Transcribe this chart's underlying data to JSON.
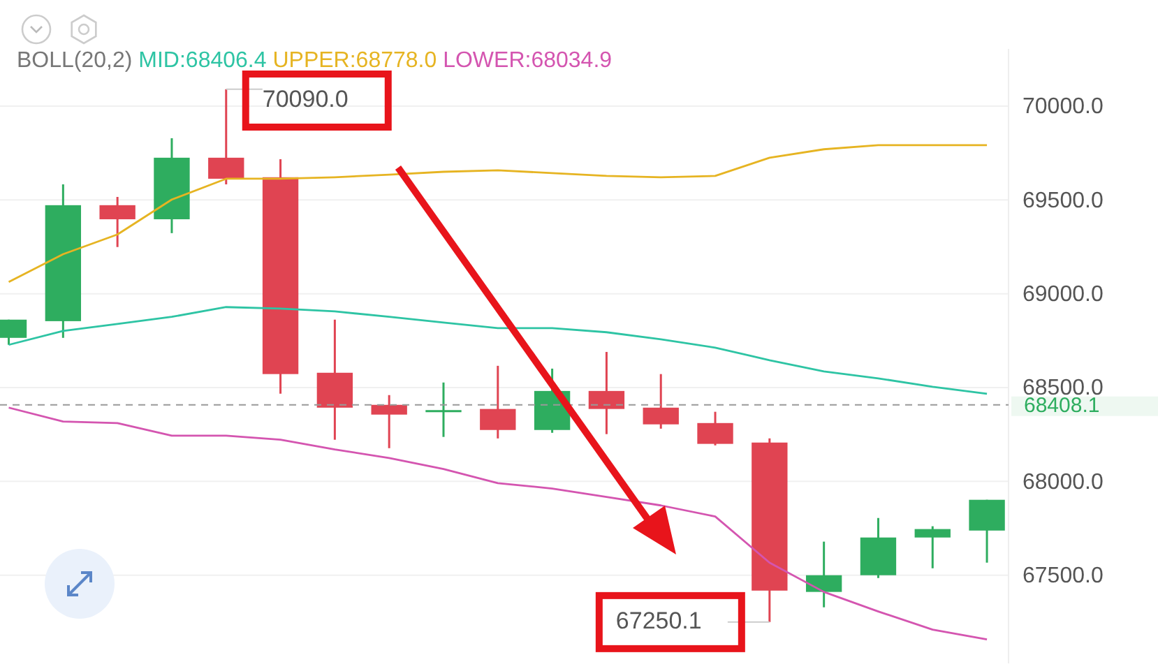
{
  "chart_data": {
    "type": "candlestick",
    "categories": [
      null,
      null,
      null,
      null,
      null,
      null,
      null,
      null,
      null,
      null,
      null,
      null,
      null,
      null,
      null,
      null,
      null,
      null,
      null
    ],
    "ohlc": [
      [
        68765,
        68862,
        68728,
        68862
      ],
      [
        68854,
        69583,
        68765,
        69472
      ],
      [
        69472,
        69516,
        69249,
        69397
      ],
      [
        69397,
        69829,
        69323,
        69725
      ],
      [
        69725,
        70090.0,
        69583,
        69613
      ],
      [
        69621,
        69717,
        68467,
        68572
      ],
      [
        68579,
        68862,
        68222,
        68393
      ],
      [
        68408,
        68460,
        68177,
        68356
      ],
      [
        68370,
        68527,
        68237,
        68380
      ],
      [
        68386,
        68616,
        68229,
        68274
      ],
      [
        68274,
        68601,
        68259,
        68482
      ],
      [
        68482,
        68690,
        68252,
        68386
      ],
      [
        68393,
        68572,
        68281,
        68304
      ],
      [
        68311,
        68371,
        68192,
        68200
      ],
      [
        68207,
        68229,
        67250.1,
        67418
      ],
      [
        67411,
        67679,
        67329,
        67500
      ],
      [
        67500,
        67805,
        67485,
        67701
      ],
      [
        67701,
        67761,
        67537,
        67746
      ],
      [
        67738,
        67902,
        67567,
        67902
      ]
    ],
    "colors": [
      "#2ead5f",
      "#2ead5f",
      "#e04452",
      "#2ead5f",
      "#e04452",
      "#e04452",
      "#e04452",
      "#e04452",
      "#2ead5f",
      "#e04452",
      "#2ead5f",
      "#e04452",
      "#e04452",
      "#e04452",
      "#e04452",
      "#2ead5f",
      "#2ead5f",
      "#2ead5f",
      "#2ead5f"
    ],
    "series": [
      {
        "type": "line",
        "name": "MID:68406.4",
        "color": "#2ec4a4",
        "values": [
          68728,
          68802,
          68839,
          68877,
          68929,
          68921,
          68906,
          68877,
          68847,
          68817,
          68817,
          68795,
          68757,
          68713,
          68646,
          68586,
          68549,
          68504,
          68467
        ]
      },
      {
        "type": "line",
        "name": "UPPER:68778.0",
        "color": "#e6b422",
        "values": [
          69063,
          69211,
          69316,
          69502,
          69613,
          69613,
          69621,
          69635,
          69650,
          69658,
          69643,
          69628,
          69621,
          69628,
          69725,
          69770,
          69792,
          69792,
          69792
        ]
      },
      {
        "type": "line",
        "name": "LOWER:68034.9",
        "color": "#d455b0",
        "values": [
          68393,
          68319,
          68311,
          68244,
          68244,
          68222,
          68170,
          68125,
          68066,
          67991,
          67962,
          67917,
          67872,
          67813,
          67567,
          67411,
          67307,
          67210,
          67158
        ]
      }
    ],
    "legend_title": "BOLL(20,2)",
    "legend": "top",
    "ylim": [
      67030,
      70305
    ],
    "yticks": [
      {
        "value": 67500,
        "label": "67500.0"
      },
      {
        "value": 68000,
        "label": "68000.0"
      },
      {
        "value": 68500,
        "label": "68500.0"
      },
      {
        "value": 69000,
        "label": "69000.0"
      },
      {
        "value": 69500,
        "label": "69500.0"
      },
      {
        "value": 70000,
        "label": "70000.0"
      }
    ],
    "grid": "y",
    "ref_lines": [
      {
        "axis": "y",
        "value": 68408.1,
        "label": "68408.1",
        "color": "#999999",
        "line_style": "dashed"
      }
    ],
    "annotations": [
      "70090.0",
      "67250.1"
    ]
  }
}
